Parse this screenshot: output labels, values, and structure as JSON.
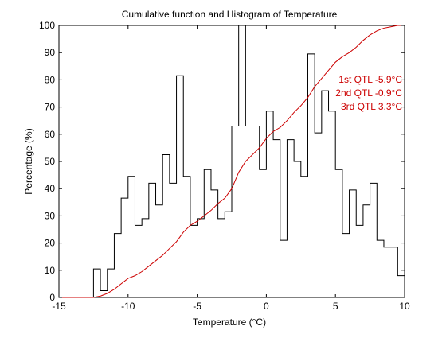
{
  "chart_data": {
    "type": "line",
    "title": "Cumulative function and Histogram of Temperature",
    "xlabel": "Temperature (°C)",
    "ylabel": "Percentage (%)",
    "xlim": [
      -15,
      10
    ],
    "ylim": [
      0,
      100
    ],
    "xticks": [
      -15,
      -10,
      -5,
      0,
      5,
      10
    ],
    "yticks": [
      0,
      10,
      20,
      30,
      40,
      50,
      60,
      70,
      80,
      90,
      100
    ],
    "xtick_labels": [
      "-15",
      "-10",
      "-5",
      "0",
      "5",
      "10"
    ],
    "ytick_labels": [
      "0",
      "10",
      "20",
      "30",
      "40",
      "50",
      "60",
      "70",
      "80",
      "90",
      "100"
    ],
    "grid": false,
    "series": [
      {
        "type": "step",
        "color": "#000000",
        "x": [
          -15,
          -12.5,
          -12.5,
          -12.0,
          -12.0,
          -11.5,
          -11.5,
          -11.0,
          -11.0,
          -10.5,
          -10.5,
          -10.0,
          -10.0,
          -9.5,
          -9.5,
          -9.0,
          -9.0,
          -8.5,
          -8.5,
          -8.0,
          -8.0,
          -7.5,
          -7.5,
          -7.0,
          -7.0,
          -6.5,
          -6.5,
          -6.0,
          -6.0,
          -5.5,
          -5.5,
          -5.0,
          -5.0,
          -4.5,
          -4.5,
          -4.0,
          -4.0,
          -3.5,
          -3.5,
          -3.0,
          -3.0,
          -2.5,
          -2.5,
          -2.0,
          -2.0,
          -1.5,
          -1.5,
          -1.0,
          -1.0,
          -0.5,
          -0.5,
          0.0,
          0.0,
          0.5,
          0.5,
          1.0,
          1.0,
          1.5,
          1.5,
          2.0,
          2.0,
          2.5,
          2.5,
          3.0,
          3.0,
          3.5,
          3.5,
          4.0,
          4.0,
          4.5,
          4.5,
          5.0,
          5.0,
          5.5,
          5.5,
          6.0,
          6.0,
          6.5,
          6.5,
          7.0,
          7.0,
          7.5,
          7.5,
          8.0,
          8.0,
          8.5,
          8.5,
          9.0,
          9.0,
          9.5,
          9.5,
          10.0
        ],
        "y": [
          0,
          0,
          10.5,
          10.5,
          2.5,
          2.5,
          10.5,
          10.5,
          23.5,
          23.5,
          36.5,
          36.5,
          44.5,
          44.5,
          26.5,
          26.5,
          29,
          29,
          42,
          42,
          34,
          34,
          52.5,
          52.5,
          42,
          42,
          81.5,
          81.5,
          44.5,
          44.5,
          26.5,
          26.5,
          29,
          29,
          47,
          47,
          39.5,
          39.5,
          29,
          29,
          31.5,
          31.5,
          63,
          63,
          100,
          100,
          63,
          63,
          63,
          63,
          47,
          47,
          68.5,
          68.5,
          58,
          58,
          21,
          21,
          58,
          58,
          50,
          50,
          44.5,
          44.5,
          89.5,
          89.5,
          60.5,
          60.5,
          76,
          76,
          68.5,
          68.5,
          47,
          47,
          23.5,
          23.5,
          39.5,
          39.5,
          26.5,
          26.5,
          34,
          34,
          42,
          42,
          21,
          21,
          18.5,
          18.5,
          18.5,
          18.5,
          8,
          8
        ]
      },
      {
        "type": "line",
        "color": "#cc0000",
        "x": [
          -15,
          -12.5,
          -12,
          -11.5,
          -11,
          -10.5,
          -10,
          -9.5,
          -9,
          -8.5,
          -8,
          -7.5,
          -7,
          -6.5,
          -6,
          -5.5,
          -5,
          -4.5,
          -4,
          -3.5,
          -3,
          -2.5,
          -2,
          -1.5,
          -1,
          -0.5,
          0,
          0.5,
          1,
          1.5,
          2,
          2.5,
          3,
          3.5,
          4,
          4.5,
          5,
          5.5,
          6,
          6.5,
          7,
          7.5,
          8,
          8.5,
          9,
          9.5,
          10
        ],
        "y": [
          0,
          0,
          0.5,
          1.5,
          3,
          5,
          7,
          8,
          9.5,
          11.5,
          13.5,
          15.5,
          18,
          20.5,
          24,
          26.5,
          28,
          30,
          32,
          34.5,
          36.5,
          40,
          46,
          50,
          52.5,
          55,
          58.5,
          61,
          62.5,
          65,
          68,
          70.5,
          73.5,
          77.5,
          80.5,
          83.5,
          86.5,
          88.5,
          90,
          92,
          94.5,
          96.5,
          98,
          99,
          99.5,
          100,
          100
        ]
      }
    ],
    "annotations": [
      {
        "text": "1st QTL -5.9°C",
        "color": "#cc0000"
      },
      {
        "text": "2nd QTL -0.9°C",
        "color": "#cc0000"
      },
      {
        "text": "3rd QTL  3.3°C",
        "color": "#cc0000"
      }
    ]
  }
}
